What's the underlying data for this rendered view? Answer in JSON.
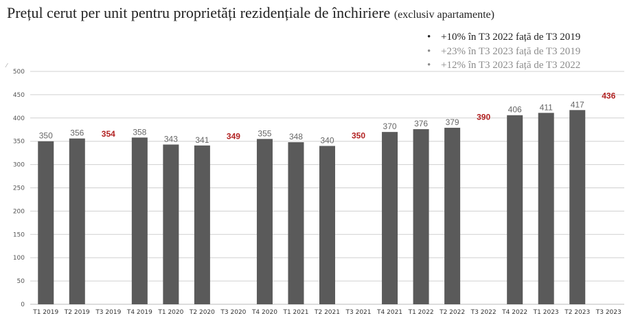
{
  "title": {
    "main": "Prețul cerut per unit pentru proprietăți rezidențiale de închiriere",
    "sub": "(exclusiv apartamente)"
  },
  "notes": [
    {
      "text": "+10% în T3 2022 față de T3 2019",
      "color": "#222222"
    },
    {
      "text": "+23% în T3 2023 față de T3 2019",
      "color": "#8c8c8c"
    },
    {
      "text": "+12% în T3 2023 față de T3 2022",
      "color": "#8c8c8c"
    }
  ],
  "y_axis_mark": "⁄",
  "chart_data": {
    "type": "bar",
    "categories": [
      "T1 2019",
      "T2 2019",
      "T3 2019",
      "T4 2019",
      "T1 2020",
      "T2 2020",
      "T3 2020",
      "T4 2020",
      "T1 2021",
      "T2 2021",
      "T3 2021",
      "T4 2021",
      "T1 2022",
      "T2 2022",
      "T3 2022",
      "T4 2022",
      "T1 2023",
      "T2 2023",
      "T3 2023"
    ],
    "values": [
      350,
      356,
      354,
      358,
      343,
      341,
      349,
      355,
      348,
      340,
      350,
      370,
      376,
      379,
      390,
      406,
      411,
      417,
      436
    ],
    "bar_drawn": [
      true,
      true,
      false,
      true,
      true,
      true,
      false,
      true,
      true,
      true,
      false,
      true,
      true,
      true,
      false,
      true,
      true,
      true,
      false
    ],
    "highlight_label": [
      false,
      false,
      true,
      false,
      false,
      false,
      true,
      false,
      false,
      false,
      true,
      false,
      false,
      false,
      true,
      false,
      false,
      false,
      true
    ],
    "ylim": [
      0,
      500
    ],
    "yticks": [
      0,
      50,
      100,
      150,
      200,
      250,
      300,
      350,
      400,
      450,
      500
    ],
    "grid": true,
    "colors": {
      "bar": "#5a5a5a",
      "label": "#666666",
      "highlight": "#b22222",
      "grid": "#d0d0d0"
    }
  }
}
